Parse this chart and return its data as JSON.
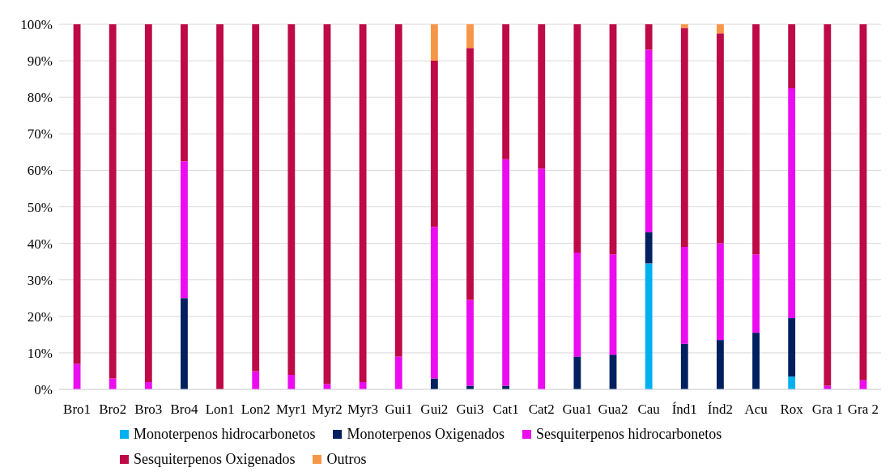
{
  "chart_data": {
    "type": "bar",
    "stacked": true,
    "grid": "y",
    "legend": "bottom",
    "categories": [
      "Bro1",
      "Bro2",
      "Bro3",
      "Bro4",
      "Lon1",
      "Lon2",
      "Myr1",
      "Myr2",
      "Myr3",
      "Gui1",
      "Gui2",
      "Gui3",
      "Cat1",
      "Cat2",
      "Gua1",
      "Gua2",
      "Cau",
      "Índ1",
      "Índ2",
      "Acu",
      "Rox",
      "Gra 1",
      "Gra 2"
    ],
    "ylim": [
      0,
      100
    ],
    "yticks": [
      {
        "value": 0,
        "label": "0%"
      },
      {
        "value": 10,
        "label": "10%"
      },
      {
        "value": 20,
        "label": "20%"
      },
      {
        "value": 30,
        "label": "30%"
      },
      {
        "value": 40,
        "label": "40%"
      },
      {
        "value": 50,
        "label": "50%"
      },
      {
        "value": 60,
        "label": "60%"
      },
      {
        "value": 70,
        "label": "70%"
      },
      {
        "value": 80,
        "label": "80%"
      },
      {
        "value": 90,
        "label": "90%"
      },
      {
        "value": 100,
        "label": "100%"
      }
    ],
    "series": [
      {
        "name": "Monoterpenos hidrocarbonetos",
        "color": "#00b0f0",
        "values": [
          0,
          0,
          0,
          0,
          0,
          0,
          0,
          0,
          0,
          0,
          0,
          0,
          0,
          0,
          0,
          0,
          34.5,
          0,
          0,
          0,
          3.5,
          0,
          0
        ]
      },
      {
        "name": "Monoterpenos Oxigenados",
        "color": "#002060",
        "values": [
          0,
          0,
          0,
          25,
          0,
          0,
          0,
          0,
          0,
          0,
          3,
          1,
          1,
          0,
          9,
          9.5,
          8.5,
          12.5,
          13.5,
          15.5,
          16,
          0,
          0
        ]
      },
      {
        "name": "Sesquiterpenos hidrocarbonetos",
        "color": "#ec0cf0",
        "values": [
          7,
          3,
          2,
          37.5,
          0,
          5,
          4,
          1.5,
          2,
          9,
          41.5,
          23.5,
          62,
          60.5,
          28.5,
          27.5,
          50,
          26.5,
          26.5,
          21.5,
          63,
          1,
          2.5
        ]
      },
      {
        "name": "Sesquiterpenos Oxigenados",
        "color": "#be0a46",
        "values": [
          93,
          97,
          98,
          37.5,
          100,
          95,
          96,
          98.5,
          98,
          91,
          45.5,
          69,
          37,
          39.5,
          62.5,
          63,
          7,
          60,
          57.5,
          63,
          17.5,
          99,
          97.5
        ]
      },
      {
        "name": "Outros",
        "color": "#f79646",
        "values": [
          0,
          0,
          0,
          0,
          0,
          0,
          0,
          0,
          0,
          0,
          10,
          6.5,
          0,
          0,
          0,
          0,
          0,
          1,
          2.5,
          0,
          0,
          0,
          0
        ]
      }
    ]
  }
}
